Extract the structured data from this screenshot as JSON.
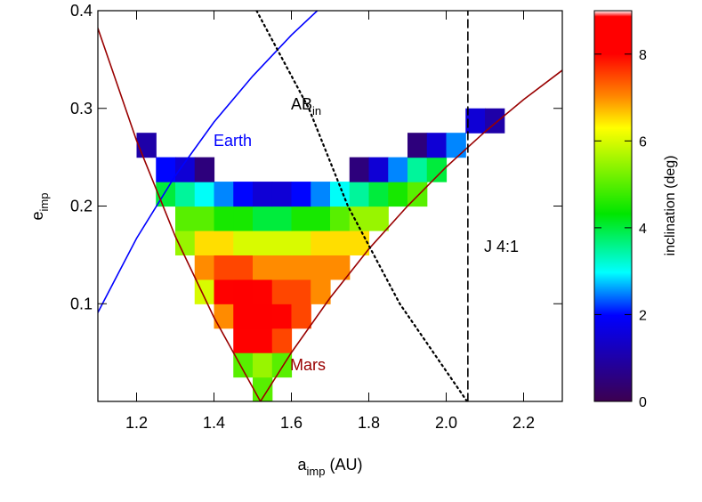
{
  "chart_data": {
    "type": "heatmap",
    "xlabel": {
      "text": "a",
      "sub": "imp",
      "unit": "(AU)"
    },
    "ylabel": {
      "text": "e",
      "sub": "imp"
    },
    "xlim": [
      1.1,
      2.3
    ],
    "xticks": [
      1.2,
      1.4,
      1.6,
      1.8,
      {
        "value": 2.0,
        "label": "2.0"
      },
      2.2
    ],
    "ylim": [
      0,
      0.4
    ],
    "yticks": [
      0.1,
      0.2,
      0.3,
      0.4
    ],
    "x": [
      1.225,
      1.275,
      1.325,
      1.375,
      1.425,
      1.475,
      1.525,
      1.575,
      1.625,
      1.675,
      1.725,
      1.775,
      1.825,
      1.875,
      1.925,
      1.975,
      2.025,
      2.075,
      2.125
    ],
    "y": [
      0.0125,
      0.0375,
      0.0625,
      0.0875,
      0.1125,
      0.1375,
      0.1625,
      0.1875,
      0.2125,
      0.2375,
      0.2625,
      0.2875
    ],
    "cell_width": 0.05,
    "cell_height": 0.025,
    "z": [
      [
        null,
        null,
        null,
        null,
        null,
        null,
        5,
        null,
        null,
        null,
        null,
        null,
        null,
        null,
        null,
        null,
        null,
        null,
        null
      ],
      [
        null,
        null,
        null,
        null,
        null,
        5,
        5.5,
        5,
        null,
        null,
        null,
        null,
        null,
        null,
        null,
        null,
        null,
        null,
        null
      ],
      [
        null,
        null,
        null,
        null,
        null,
        8,
        8,
        7.5,
        null,
        null,
        null,
        null,
        null,
        null,
        null,
        null,
        null,
        null,
        null
      ],
      [
        null,
        null,
        null,
        null,
        7,
        8.5,
        8.5,
        8,
        7.5,
        null,
        null,
        null,
        null,
        null,
        null,
        null,
        null,
        null,
        null
      ],
      [
        null,
        null,
        null,
        6,
        8,
        8.5,
        8,
        7.5,
        7.5,
        7,
        null,
        null,
        null,
        null,
        null,
        null,
        null,
        null,
        null
      ],
      [
        null,
        null,
        null,
        7,
        7.5,
        7.5,
        7,
        7,
        7,
        7,
        7,
        null,
        null,
        null,
        null,
        null,
        null,
        null,
        null
      ],
      [
        null,
        null,
        5.5,
        6.5,
        6.5,
        6,
        6,
        6,
        6,
        6.5,
        6.5,
        6.5,
        null,
        null,
        null,
        null,
        null,
        null,
        null
      ],
      [
        null,
        null,
        5,
        5,
        4.5,
        4.5,
        4,
        4,
        4.5,
        4.5,
        5,
        5.5,
        5.5,
        null,
        null,
        null,
        null,
        null,
        null
      ],
      [
        null,
        4,
        3.5,
        3,
        2.5,
        2,
        1.5,
        1.5,
        2,
        2.5,
        3,
        3.5,
        4,
        4.5,
        5,
        null,
        null,
        null,
        null
      ],
      [
        null,
        2,
        1.5,
        0.5,
        null,
        null,
        null,
        null,
        null,
        null,
        null,
        0.5,
        1.5,
        2.5,
        3.5,
        4,
        null,
        null,
        null
      ],
      [
        1,
        null,
        null,
        null,
        null,
        null,
        null,
        null,
        null,
        null,
        null,
        null,
        null,
        null,
        0.5,
        1.5,
        2.5,
        null,
        null
      ],
      [
        null,
        null,
        null,
        null,
        null,
        null,
        null,
        null,
        null,
        null,
        null,
        null,
        null,
        null,
        null,
        null,
        null,
        1.5,
        1
      ]
    ],
    "series": [
      {
        "name": "Earth",
        "color": "#0000ff",
        "style": "solid",
        "x": [
          1.1,
          1.2,
          1.3,
          1.4,
          1.5,
          1.6,
          1.667
        ],
        "y": [
          0.091,
          0.167,
          0.231,
          0.286,
          0.333,
          0.375,
          0.4
        ]
      },
      {
        "name": "Mars",
        "color": "#990000",
        "style": "solid",
        "x": [
          1.1,
          1.2,
          1.3,
          1.4,
          1.52,
          1.6,
          1.7,
          1.8,
          1.9,
          2.0,
          2.1,
          2.2,
          2.3
        ],
        "y": [
          0.382,
          0.267,
          0.169,
          0.086,
          0,
          0.05,
          0.106,
          0.156,
          0.2,
          0.24,
          0.276,
          0.309,
          0.339
        ]
      },
      {
        "name": "AB",
        "name_sub": "in",
        "color": "#000000",
        "style": "dotted",
        "x": [
          1.51,
          1.645,
          1.746,
          1.88,
          2.054
        ],
        "y": [
          0.4,
          0.3,
          0.2,
          0.1,
          0
        ]
      },
      {
        "name": "J 4:1",
        "color": "#000000",
        "style": "dashed",
        "x": [
          2.056,
          2.056
        ],
        "y": [
          0,
          0.4
        ]
      }
    ],
    "colorbar": {
      "label": "inclination (deg)",
      "lim": [
        0,
        9
      ],
      "ticks": [
        0,
        2,
        4,
        6,
        8
      ]
    }
  }
}
